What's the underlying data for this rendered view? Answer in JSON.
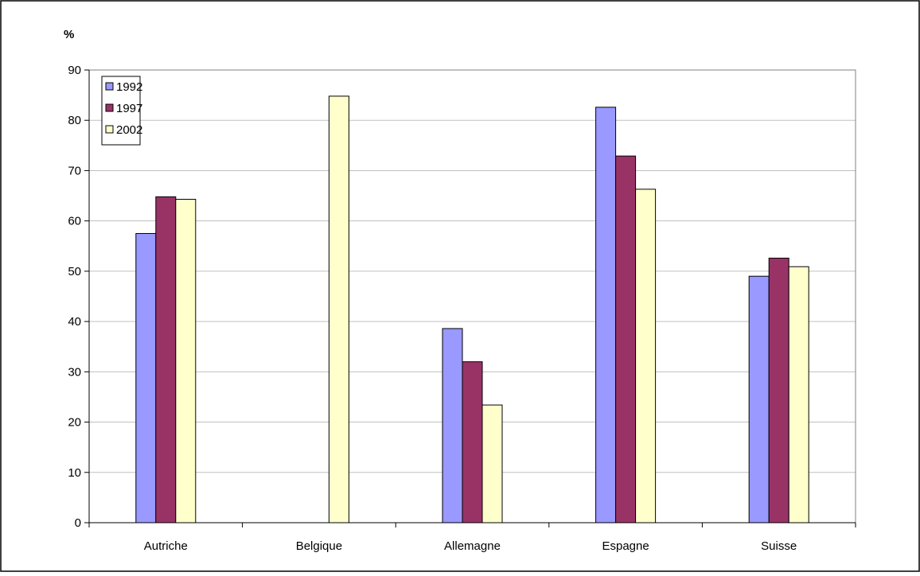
{
  "chart_data": {
    "type": "bar",
    "title": "",
    "ylabel": "%",
    "xlabel": "",
    "categories": [
      "Autriche",
      "Belgique",
      "Allemagne",
      "Espagne",
      "Suisse"
    ],
    "series": [
      {
        "name": "1992",
        "color": "#9999ff",
        "values": [
          57.5,
          null,
          38.6,
          82.6,
          49.0
        ]
      },
      {
        "name": "1997",
        "color": "#993366",
        "values": [
          64.8,
          null,
          32.0,
          72.9,
          52.6
        ]
      },
      {
        "name": "2002",
        "color": "#ffffcc",
        "values": [
          64.3,
          84.8,
          23.4,
          66.3,
          50.9
        ]
      }
    ],
    "ylim": [
      0,
      90
    ],
    "yticks": [
      0,
      10,
      20,
      30,
      40,
      50,
      60,
      70,
      80,
      90
    ],
    "grid": true,
    "legend_position": "top-left"
  }
}
